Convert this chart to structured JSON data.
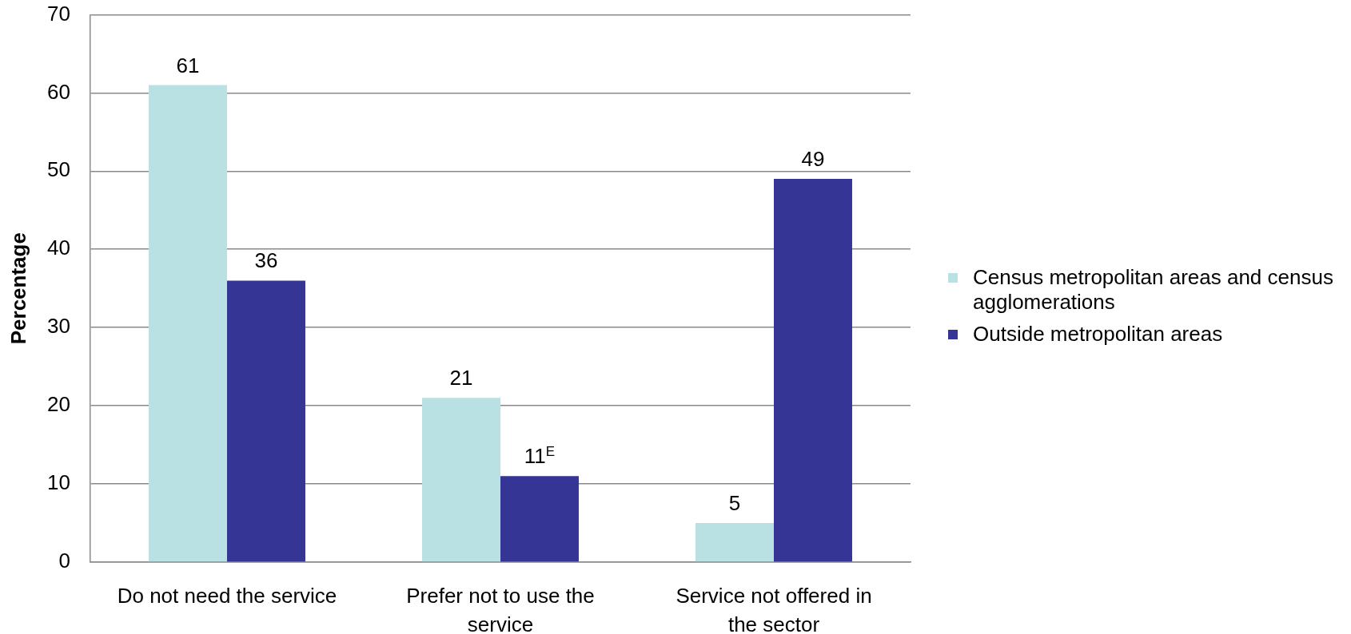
{
  "chart_data": {
    "type": "bar",
    "categories": [
      "Do not need the service",
      "Prefer not to use the service",
      "Service not offered in the sector"
    ],
    "series": [
      {
        "name": "Census metropolitan areas and census agglomerations",
        "color": "#b9e0e3",
        "values": [
          61,
          21,
          5
        ],
        "value_labels": [
          "61",
          "21",
          "5"
        ]
      },
      {
        "name": "Outside metropolitan areas",
        "color": "#353596",
        "values": [
          36,
          11,
          49
        ],
        "value_labels": [
          "36",
          "11$^{E}$",
          "49"
        ]
      }
    ],
    "ylabel": "Percentage",
    "ylim": [
      0,
      70
    ],
    "yticks": [
      0,
      10,
      20,
      30,
      40,
      50,
      60,
      70
    ],
    "grid": "y",
    "legend": "right"
  }
}
